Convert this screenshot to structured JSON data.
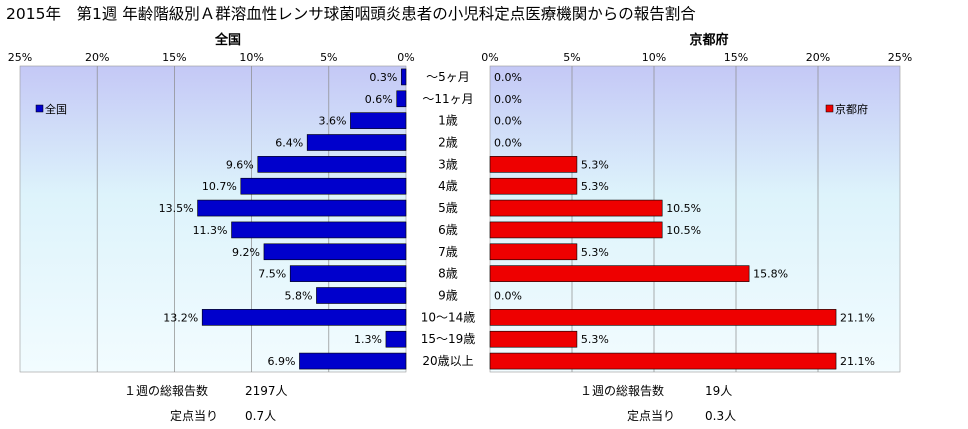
{
  "title": "2015年　第1週 年齢階級別Ａ群溶血性レンサ球菌咽頭炎患者の小児科定点医療機関からの報告割合",
  "chart_data": [
    {
      "type": "bar",
      "orientation": "horizontal",
      "title": "全国",
      "legend": "全国",
      "legend_position": "top-left",
      "color": "#0000cc",
      "direction": "leftward",
      "xlim": [
        0,
        25
      ],
      "tick_labels": [
        "25%",
        "20%",
        "15%",
        "10%",
        "5%",
        "0%"
      ],
      "categories": [
        "～5ヶ月",
        "～11ヶ月",
        "1歳",
        "2歳",
        "3歳",
        "4歳",
        "5歳",
        "6歳",
        "7歳",
        "8歳",
        "9歳",
        "10～14歳",
        "15～19歳",
        "20歳以上"
      ],
      "values": [
        0.3,
        0.6,
        3.6,
        6.4,
        9.6,
        10.7,
        13.5,
        11.3,
        9.2,
        7.5,
        5.8,
        13.2,
        1.3,
        6.9
      ],
      "value_labels": [
        "0.3%",
        "0.6%",
        "3.6%",
        "6.4%",
        "9.6%",
        "10.7%",
        "13.5%",
        "11.3%",
        "9.2%",
        "7.5%",
        "5.8%",
        "13.2%",
        "1.3%",
        "6.9%"
      ]
    },
    {
      "type": "bar",
      "orientation": "horizontal",
      "title": "京都府",
      "legend": "京都府",
      "legend_position": "top-right",
      "color": "#ee0000",
      "direction": "rightward",
      "xlim": [
        0,
        25
      ],
      "tick_labels": [
        "0%",
        "5%",
        "10%",
        "15%",
        "20%",
        "25%"
      ],
      "categories": [
        "～5ヶ月",
        "～11ヶ月",
        "1歳",
        "2歳",
        "3歳",
        "4歳",
        "5歳",
        "6歳",
        "7歳",
        "8歳",
        "9歳",
        "10～14歳",
        "15～19歳",
        "20歳以上"
      ],
      "values": [
        0.0,
        0.0,
        0.0,
        0.0,
        5.3,
        5.3,
        10.5,
        10.5,
        5.3,
        15.8,
        0.0,
        21.1,
        5.3,
        21.1
      ],
      "value_labels": [
        "0.0%",
        "0.0%",
        "0.0%",
        "0.0%",
        "5.3%",
        "5.3%",
        "10.5%",
        "10.5%",
        "5.3%",
        "15.8%",
        "0.0%",
        "21.1%",
        "5.3%",
        "21.1%"
      ]
    }
  ],
  "footer": {
    "national": {
      "total_label": "１週の総報告数",
      "total_value": "2197人",
      "per_label": "定点当り",
      "per_value": "0.7人"
    },
    "kyoto": {
      "total_label": "１週の総報告数",
      "total_value": "19人",
      "per_label": "定点当り",
      "per_value": "0.3人"
    }
  }
}
